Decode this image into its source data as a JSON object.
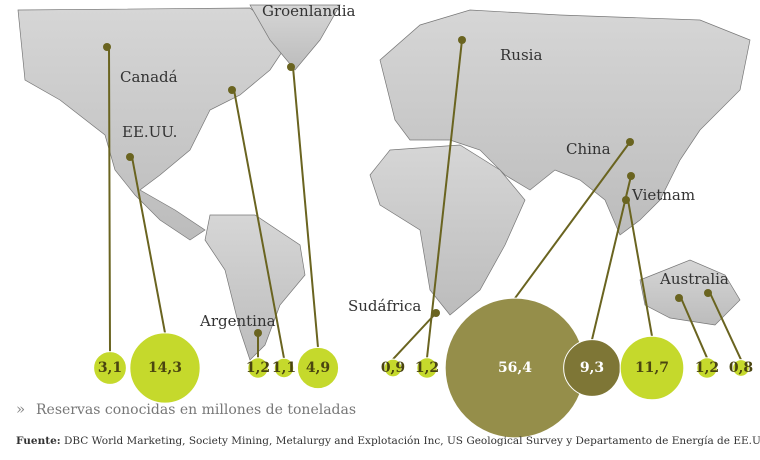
{
  "chart_data": {
    "type": "bubble-map",
    "map_labels": [
      "Groenlandia",
      "Canadá",
      "EE.UU.",
      "Rusia",
      "China",
      "Vietnam",
      "Australia",
      "Sudáfrica",
      "Argentina"
    ],
    "values": [
      3.1,
      14.3,
      1.2,
      1.1,
      4.9,
      0.9,
      1.2,
      56.4,
      9.3,
      11.7,
      1.2,
      0.8
    ],
    "value_labels": [
      "3,1",
      "14,3",
      "1,2",
      "1,1",
      "4,9",
      "0,9",
      "1,2",
      "56,4",
      "9,3",
      "11,7",
      "1,2",
      "0,8"
    ],
    "colors": [
      "#c5d92c",
      "#c5d92c",
      "#c5d92c",
      "#c5d92c",
      "#c5d92c",
      "#c5d92c",
      "#c5d92c",
      "#958e4a",
      "#7e7636",
      "#c5d92c",
      "#c5d92c",
      "#c5d92c"
    ],
    "caption_marker": "»",
    "caption": "Reservas conocidas en millones de toneladas",
    "source_label": "Fuente:",
    "source": "DBC World Marketing, Society Mining, Metalurgy and Explotación Inc, US Geological Survey y Departamento de Energía de EE.UU."
  }
}
